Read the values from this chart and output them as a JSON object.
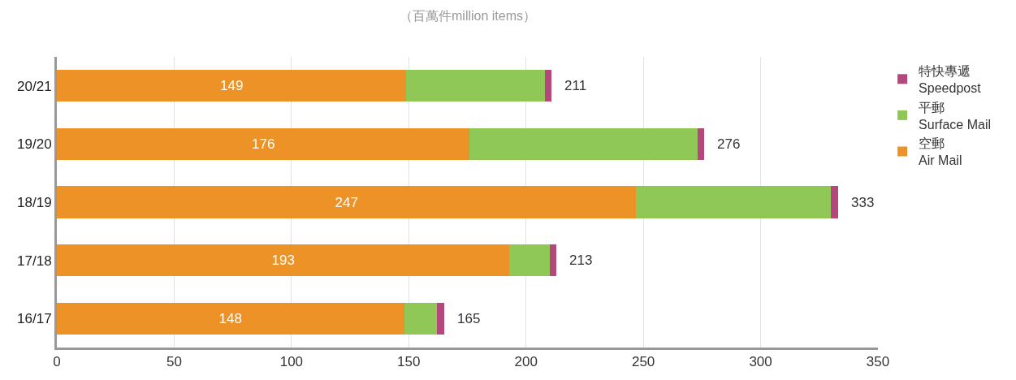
{
  "chart_data": {
    "type": "bar",
    "orientation": "horizontal",
    "stacked": true,
    "subtitle": "（百萬件million items）",
    "categories": [
      "20/21",
      "19/20",
      "18/19",
      "17/18",
      "16/17"
    ],
    "series": [
      {
        "name": "空郵\nAir Mail",
        "color": "#ec9226",
        "values": [
          149,
          176,
          247,
          193,
          148
        ],
        "value_labels": [
          "149",
          "176",
          "247",
          "193",
          "148"
        ]
      },
      {
        "name": "平郵\nSurface Mail",
        "color": "#8fc857",
        "values": [
          59,
          97,
          83,
          17,
          14
        ]
      },
      {
        "name": "特快專遞\nSpeedpost",
        "color": "#b4487d",
        "values": [
          3,
          3,
          3,
          3,
          3
        ]
      }
    ],
    "totals": [
      "211",
      "276",
      "333",
      "213",
      "165"
    ],
    "xlim": [
      0,
      350
    ],
    "xticks": [
      0,
      50,
      100,
      150,
      200,
      250,
      300,
      350
    ],
    "grid": "x",
    "legend": "top right"
  }
}
